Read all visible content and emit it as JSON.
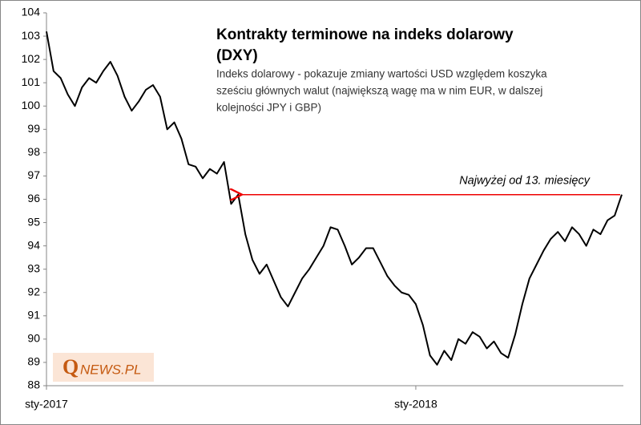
{
  "chart_data": {
    "type": "line",
    "title": [
      "Kontrakty terminowe na indeks dolarowy",
      "(DXY)"
    ],
    "subtitle": [
      "Indeks dolarowy - pokazuje zmiany wartości USD względem koszyka",
      "sześciu głównych walut (największą wagę ma w nim EUR, w dalszej",
      "kolejności JPY i GBP)"
    ],
    "annotation": "Najwyżej od 13. miesięcy",
    "logo_initial": "Q",
    "logo_rest": "NEWS.PL",
    "categories": [
      "sty-2017",
      null,
      null,
      null,
      null,
      null,
      null,
      null,
      null,
      null,
      null,
      null,
      null,
      null,
      null,
      null,
      null,
      null,
      null,
      null,
      null,
      null,
      null,
      null,
      null,
      null,
      null,
      null,
      null,
      null,
      null,
      null,
      null,
      null,
      null,
      null,
      null,
      null,
      null,
      null,
      null,
      null,
      null,
      null,
      null,
      null,
      null,
      null,
      null,
      null,
      null,
      null,
      "sty-2018",
      null,
      null,
      null,
      null,
      null,
      null,
      null,
      null,
      null,
      null,
      null,
      null,
      null,
      null,
      null,
      null,
      null,
      null,
      null,
      null,
      null,
      null,
      null,
      null,
      null,
      null,
      null,
      null,
      null
    ],
    "series": [
      {
        "name": "DXY",
        "color": "#000000",
        "values": [
          103.2,
          101.5,
          101.2,
          100.5,
          100.0,
          100.8,
          101.2,
          101.0,
          101.5,
          101.9,
          101.3,
          100.4,
          99.8,
          100.2,
          100.7,
          100.9,
          100.4,
          99.0,
          99.3,
          98.6,
          97.5,
          97.4,
          96.9,
          97.3,
          97.1,
          97.6,
          95.8,
          96.2,
          94.5,
          93.4,
          92.8,
          93.2,
          92.5,
          91.8,
          91.4,
          92.0,
          92.6,
          93.0,
          93.5,
          94.0,
          94.8,
          94.7,
          94.0,
          93.2,
          93.5,
          93.9,
          93.9,
          93.3,
          92.7,
          92.3,
          92.0,
          91.9,
          91.5,
          90.6,
          89.3,
          88.9,
          89.5,
          89.1,
          90.0,
          89.8,
          90.3,
          90.1,
          89.6,
          89.9,
          89.4,
          89.2,
          90.2,
          91.5,
          92.6,
          93.2,
          93.8,
          94.3,
          94.6,
          94.2,
          94.8,
          94.5,
          94.0,
          94.7,
          94.5,
          95.1,
          95.3,
          96.2
        ]
      }
    ],
    "annotation_value": 96.2,
    "ylim": [
      88,
      104
    ],
    "yticks": [
      88,
      89,
      90,
      91,
      92,
      93,
      94,
      95,
      96,
      97,
      98,
      99,
      100,
      101,
      102,
      103,
      104
    ],
    "grid": false
  }
}
